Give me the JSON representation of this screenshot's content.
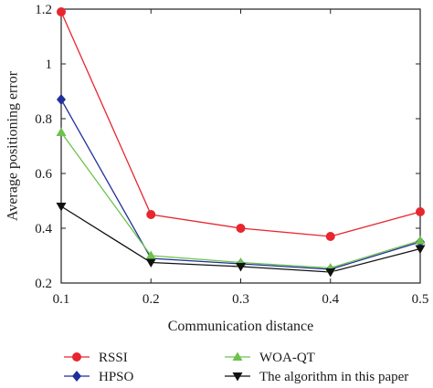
{
  "chart_data": {
    "type": "line",
    "title": "",
    "xlabel": "Communication distance",
    "ylabel": "Average positioning error",
    "xlim": [
      0.1,
      0.5
    ],
    "ylim": [
      0.2,
      1.2
    ],
    "x": [
      0.1,
      0.2,
      0.3,
      0.4,
      0.5
    ],
    "x_tick_labels": [
      "0.1",
      "0.2",
      "0.3",
      "0.4",
      "0.5"
    ],
    "y_ticks": [
      0.2,
      0.4,
      0.6,
      0.8,
      1.0,
      1.2
    ],
    "y_tick_labels": [
      "0.2",
      "0.4",
      "0.6",
      "0.8",
      "1",
      "1.2"
    ],
    "grid": false,
    "legend_position": "bottom",
    "series": [
      {
        "name": "RSSI",
        "values": [
          1.19,
          0.45,
          0.4,
          0.37,
          0.46
        ],
        "color": "#e8262e",
        "marker": "circle"
      },
      {
        "name": "HPSO",
        "values": [
          0.87,
          0.29,
          0.27,
          0.25,
          0.35
        ],
        "color": "#1f2f9c",
        "marker": "diamond"
      },
      {
        "name": "WOA-QT",
        "values": [
          0.75,
          0.3,
          0.275,
          0.255,
          0.355
        ],
        "color": "#6cc24a",
        "marker": "triangle-up"
      },
      {
        "name": "The algorithm in this paper",
        "values": [
          0.48,
          0.275,
          0.26,
          0.24,
          0.325
        ],
        "color": "#111111",
        "marker": "triangle-down"
      }
    ]
  }
}
